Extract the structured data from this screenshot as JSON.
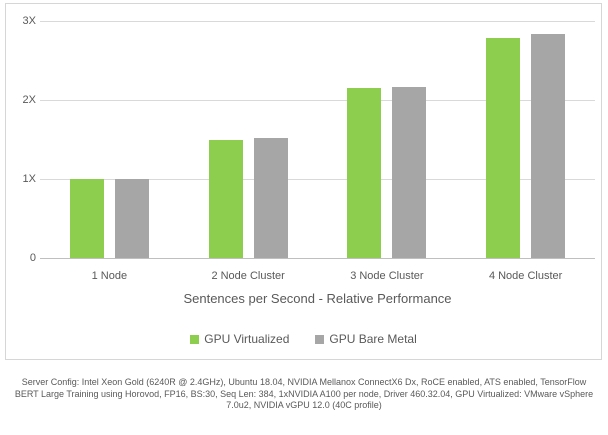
{
  "chart_data": {
    "type": "bar",
    "title": "",
    "categories": [
      "1 Node",
      "2 Node Cluster",
      "3 Node Cluster",
      "4 Node Cluster"
    ],
    "series": [
      {
        "name": "GPU Virtualized",
        "color": "#8DCE4F",
        "values": [
          1.0,
          1.49,
          2.15,
          2.79
        ]
      },
      {
        "name": "GPU Bare Metal",
        "color": "#A6A6A6",
        "values": [
          1.0,
          1.52,
          2.17,
          2.84
        ]
      }
    ],
    "xlabel": "Sentences per Second - Relative Performance",
    "ylabel": "",
    "yticks": [
      {
        "label": "3X",
        "value": 3
      },
      {
        "label": "2X",
        "value": 2
      },
      {
        "label": "1X",
        "value": 1
      },
      {
        "label": "0",
        "value": 0
      }
    ],
    "ylim": [
      0,
      3.2
    ],
    "grid": true,
    "legend_position": "bottom"
  },
  "colors": {
    "grid": "#D9D9D9",
    "axis_line": "#BFBFBF",
    "frame": "#D6D6D6",
    "text": "#595959"
  },
  "footer": {
    "text": "Server Config: Intel Xeon Gold (6240R @ 2.4GHz), Ubuntu 18.04, NVIDIA Mellanox ConnectX6 Dx, RoCE enabled, ATS enabled, TensorFlow BERT Large Training using Horovod, FP16, BS:30, Seq Len: 384, 1xNVIDIA A100 per node, Driver 460.32.04, GPU Virtualized: VMware vSphere 7.0u2, NVIDIA vGPU 12.0 (40C profile)"
  }
}
